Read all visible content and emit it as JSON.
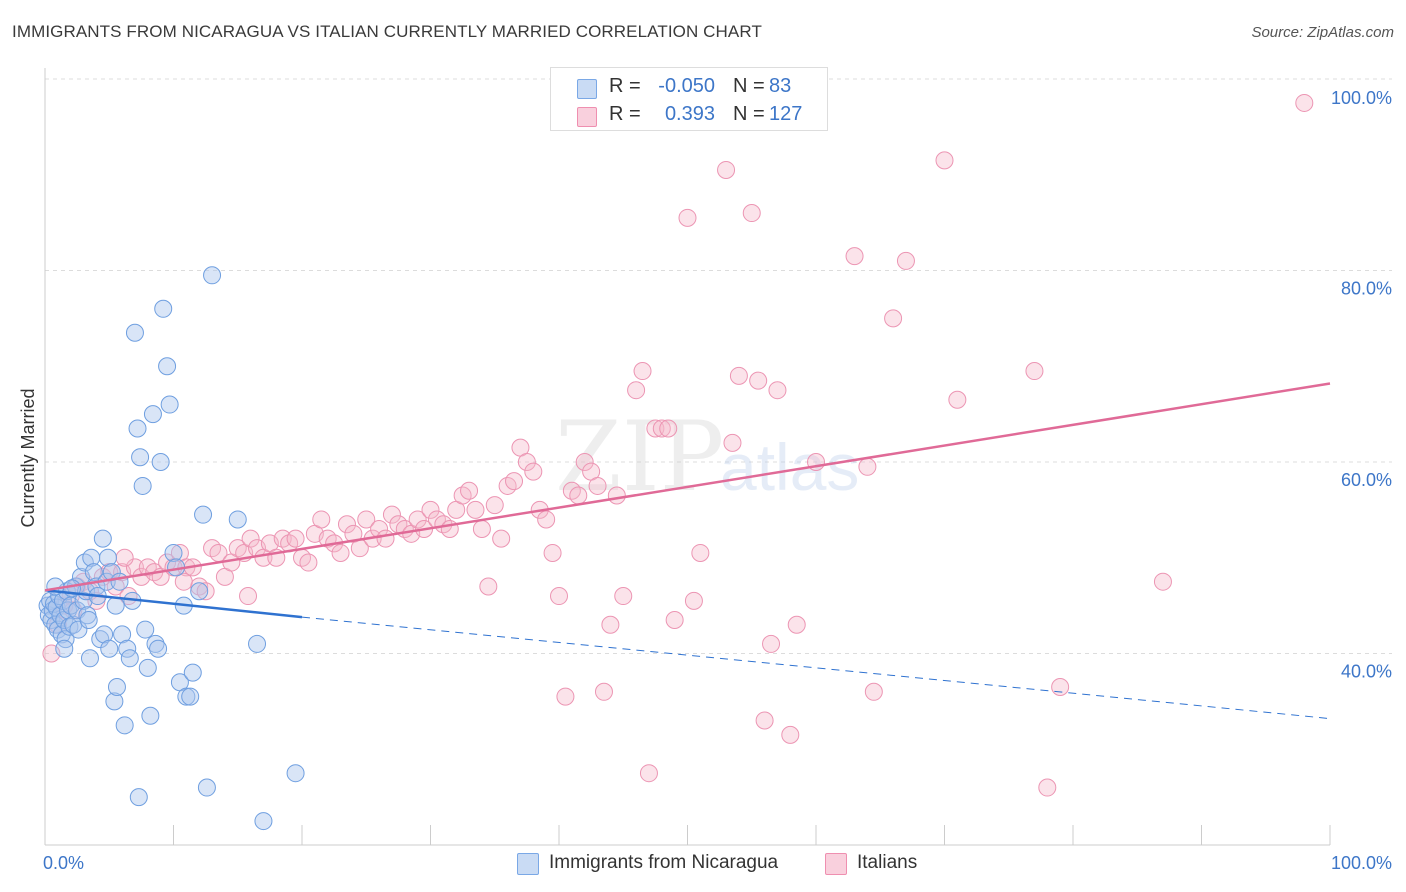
{
  "title": "IMMIGRANTS FROM NICARAGUA VS ITALIAN CURRENTLY MARRIED CORRELATION CHART",
  "source": "Source: ZipAtlas.com",
  "watermark": {
    "zip": "ZIP",
    "atlas": "atlas"
  },
  "legend": {
    "rows": [
      {
        "r_label": "R =",
        "r_value": "-0.050",
        "n_label": "N =",
        "n_value": "83",
        "color": "#aac6ee"
      },
      {
        "r_label": "R =",
        "r_value": "0.393",
        "n_label": "N =",
        "n_value": "127",
        "color": "#f6b8cb"
      }
    ]
  },
  "bottom_legend": [
    {
      "label": "Immigrants from Nicaragua",
      "color": "#aac6ee"
    },
    {
      "label": "Italians",
      "color": "#f6b8cb"
    }
  ],
  "chart_data": {
    "type": "scatter",
    "title": "IMMIGRANTS FROM NICARAGUA VS ITALIAN CURRENTLY MARRIED CORRELATION CHART",
    "xlabel": "",
    "ylabel": "Currently Married",
    "xlim": [
      0,
      100
    ],
    "ylim": [
      20,
      100
    ],
    "x_tick_labels": [
      "0.0%",
      "100.0%"
    ],
    "y_ticks": [
      40,
      60,
      80,
      100
    ],
    "y_tick_labels": [
      "40.0%",
      "60.0%",
      "80.0%",
      "100.0%"
    ],
    "grid": true,
    "legend_position": "top-center",
    "series": [
      {
        "name": "Immigrants from Nicaragua",
        "color": "#7aa8e6",
        "line_color": "#2f72d0",
        "trend": {
          "x": [
            0,
            20
          ],
          "y": [
            46.6,
            43.8
          ],
          "dashed_to": [
            100,
            33.2
          ]
        },
        "points": [
          [
            0.2,
            45.0
          ],
          [
            0.3,
            44.0
          ],
          [
            0.4,
            45.5
          ],
          [
            0.5,
            43.5
          ],
          [
            0.6,
            44.5
          ],
          [
            0.7,
            45.2
          ],
          [
            0.8,
            43.0
          ],
          [
            0.9,
            44.8
          ],
          [
            1.0,
            42.5
          ],
          [
            1.1,
            46.0
          ],
          [
            1.2,
            44.0
          ],
          [
            1.3,
            42.0
          ],
          [
            1.4,
            45.5
          ],
          [
            1.5,
            43.5
          ],
          [
            1.6,
            41.5
          ],
          [
            1.7,
            46.5
          ],
          [
            1.8,
            44.5
          ],
          [
            1.9,
            42.8
          ],
          [
            2.0,
            45.0
          ],
          [
            2.2,
            43.0
          ],
          [
            2.4,
            47.0
          ],
          [
            2.5,
            44.5
          ],
          [
            2.6,
            42.5
          ],
          [
            2.8,
            48.0
          ],
          [
            3.0,
            45.5
          ],
          [
            3.1,
            49.5
          ],
          [
            3.2,
            46.5
          ],
          [
            3.3,
            44.0
          ],
          [
            3.5,
            39.5
          ],
          [
            3.6,
            50.0
          ],
          [
            3.8,
            48.5
          ],
          [
            4.0,
            47.0
          ],
          [
            4.1,
            46.0
          ],
          [
            4.3,
            41.5
          ],
          [
            4.5,
            52.0
          ],
          [
            4.6,
            42.0
          ],
          [
            4.8,
            47.5
          ],
          [
            4.9,
            50.0
          ],
          [
            5.0,
            40.5
          ],
          [
            5.2,
            48.5
          ],
          [
            5.4,
            35.0
          ],
          [
            5.5,
            45.0
          ],
          [
            5.6,
            36.5
          ],
          [
            5.8,
            47.5
          ],
          [
            6.0,
            42.0
          ],
          [
            6.2,
            32.5
          ],
          [
            6.4,
            40.5
          ],
          [
            6.6,
            39.5
          ],
          [
            6.8,
            45.5
          ],
          [
            7.0,
            73.5
          ],
          [
            7.2,
            63.5
          ],
          [
            7.4,
            60.5
          ],
          [
            7.6,
            57.5
          ],
          [
            7.8,
            42.5
          ],
          [
            8.0,
            38.5
          ],
          [
            8.2,
            33.5
          ],
          [
            8.4,
            65.0
          ],
          [
            8.6,
            41.0
          ],
          [
            8.8,
            40.5
          ],
          [
            9.0,
            60.0
          ],
          [
            9.2,
            76.0
          ],
          [
            9.5,
            70.0
          ],
          [
            9.7,
            66.0
          ],
          [
            10.0,
            50.5
          ],
          [
            10.2,
            49.0
          ],
          [
            10.5,
            37.0
          ],
          [
            10.8,
            45.0
          ],
          [
            11.0,
            35.5
          ],
          [
            11.3,
            35.5
          ],
          [
            11.5,
            38.0
          ],
          [
            12.0,
            46.5
          ],
          [
            12.3,
            54.5
          ],
          [
            12.6,
            26.0
          ],
          [
            13.0,
            79.5
          ],
          [
            15.0,
            54.0
          ],
          [
            16.5,
            41.0
          ],
          [
            17.0,
            22.5
          ],
          [
            19.5,
            27.5
          ],
          [
            1.5,
            40.5
          ],
          [
            2.1,
            46.8
          ],
          [
            3.4,
            43.5
          ],
          [
            7.3,
            25.0
          ],
          [
            0.8,
            47.0
          ]
        ]
      },
      {
        "name": "Italians",
        "color": "#ef8fb0",
        "line_color": "#e06a97",
        "trend": {
          "x": [
            0,
            100
          ],
          "y": [
            46.6,
            68.2
          ]
        },
        "points": [
          [
            0.5,
            40.0
          ],
          [
            1.0,
            43.0
          ],
          [
            1.5,
            45.0
          ],
          [
            2.0,
            46.0
          ],
          [
            2.5,
            47.0
          ],
          [
            3.0,
            47.5
          ],
          [
            3.5,
            46.5
          ],
          [
            4.0,
            45.5
          ],
          [
            4.5,
            48.0
          ],
          [
            5.0,
            48.5
          ],
          [
            5.5,
            47.0
          ],
          [
            6.0,
            48.5
          ],
          [
            6.5,
            46.0
          ],
          [
            7.0,
            49.0
          ],
          [
            7.5,
            48.0
          ],
          [
            8.0,
            49.0
          ],
          [
            8.5,
            48.5
          ],
          [
            9.0,
            48.0
          ],
          [
            9.5,
            49.5
          ],
          [
            10.0,
            49.0
          ],
          [
            10.5,
            50.5
          ],
          [
            11.0,
            49.0
          ],
          [
            11.5,
            49.0
          ],
          [
            12.0,
            47.0
          ],
          [
            12.5,
            46.5
          ],
          [
            13.0,
            51.0
          ],
          [
            13.5,
            50.5
          ],
          [
            14.0,
            48.0
          ],
          [
            14.5,
            49.5
          ],
          [
            15.0,
            51.0
          ],
          [
            15.5,
            50.5
          ],
          [
            16.0,
            52.0
          ],
          [
            16.5,
            51.0
          ],
          [
            17.0,
            50.0
          ],
          [
            17.5,
            51.5
          ],
          [
            18.0,
            50.0
          ],
          [
            18.5,
            52.0
          ],
          [
            19.0,
            51.5
          ],
          [
            19.5,
            52.0
          ],
          [
            20.0,
            50.0
          ],
          [
            20.5,
            49.5
          ],
          [
            21.0,
            52.5
          ],
          [
            21.5,
            54.0
          ],
          [
            22.0,
            52.0
          ],
          [
            22.5,
            51.5
          ],
          [
            23.0,
            50.5
          ],
          [
            23.5,
            53.5
          ],
          [
            24.0,
            52.5
          ],
          [
            24.5,
            51.0
          ],
          [
            25.0,
            54.0
          ],
          [
            25.5,
            52.0
          ],
          [
            26.0,
            53.0
          ],
          [
            26.5,
            52.0
          ],
          [
            27.0,
            54.5
          ],
          [
            27.5,
            53.5
          ],
          [
            28.0,
            53.0
          ],
          [
            28.5,
            52.5
          ],
          [
            29.0,
            54.0
          ],
          [
            29.5,
            53.0
          ],
          [
            30.0,
            55.0
          ],
          [
            30.5,
            54.0
          ],
          [
            31.0,
            53.5
          ],
          [
            31.5,
            53.0
          ],
          [
            32.0,
            55.0
          ],
          [
            32.5,
            56.5
          ],
          [
            33.0,
            57.0
          ],
          [
            33.5,
            55.0
          ],
          [
            34.0,
            53.0
          ],
          [
            34.5,
            47.0
          ],
          [
            35.0,
            55.5
          ],
          [
            35.5,
            52.0
          ],
          [
            36.0,
            57.5
          ],
          [
            36.5,
            58.0
          ],
          [
            37.0,
            61.5
          ],
          [
            37.5,
            60.0
          ],
          [
            38.0,
            59.0
          ],
          [
            38.5,
            55.0
          ],
          [
            39.0,
            54.0
          ],
          [
            39.5,
            50.5
          ],
          [
            40.0,
            46.0
          ],
          [
            40.5,
            35.5
          ],
          [
            41.0,
            57.0
          ],
          [
            41.5,
            56.5
          ],
          [
            42.0,
            60.0
          ],
          [
            42.5,
            59.0
          ],
          [
            43.0,
            57.5
          ],
          [
            43.5,
            36.0
          ],
          [
            44.0,
            43.0
          ],
          [
            44.5,
            56.5
          ],
          [
            45.0,
            46.0
          ],
          [
            46.0,
            67.5
          ],
          [
            46.5,
            69.5
          ],
          [
            47.0,
            27.5
          ],
          [
            47.5,
            63.5
          ],
          [
            48.0,
            63.5
          ],
          [
            48.5,
            63.5
          ],
          [
            49.0,
            43.5
          ],
          [
            50.0,
            85.5
          ],
          [
            50.5,
            45.5
          ],
          [
            51.0,
            50.5
          ],
          [
            53.0,
            90.5
          ],
          [
            53.5,
            62.0
          ],
          [
            54.0,
            69.0
          ],
          [
            55.0,
            86.0
          ],
          [
            55.5,
            68.5
          ],
          [
            56.0,
            33.0
          ],
          [
            56.5,
            41.0
          ],
          [
            57.0,
            67.5
          ],
          [
            58.0,
            31.5
          ],
          [
            58.5,
            43.0
          ],
          [
            60.0,
            60.0
          ],
          [
            63.0,
            81.5
          ],
          [
            64.0,
            59.5
          ],
          [
            64.5,
            36.0
          ],
          [
            66.0,
            75.0
          ],
          [
            67.0,
            81.0
          ],
          [
            70.0,
            91.5
          ],
          [
            71.0,
            66.5
          ],
          [
            77.0,
            69.5
          ],
          [
            79.0,
            36.5
          ],
          [
            78.0,
            26.0
          ],
          [
            87.0,
            47.5
          ],
          [
            98.0,
            97.5
          ],
          [
            2.2,
            44.5
          ],
          [
            6.2,
            50.0
          ],
          [
            10.8,
            47.5
          ],
          [
            15.8,
            46.0
          ]
        ]
      }
    ]
  }
}
